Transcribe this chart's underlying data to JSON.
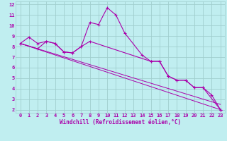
{
  "xlabel": "Windchill (Refroidissement éolien,°C)",
  "bg_color": "#c0eef0",
  "grid_color": "#a0cece",
  "line_color": "#aa00aa",
  "xlim": [
    -0.5,
    23.5
  ],
  "ylim": [
    1.7,
    12.3
  ],
  "yticks": [
    2,
    3,
    4,
    5,
    6,
    7,
    8,
    9,
    10,
    11,
    12
  ],
  "xticks": [
    0,
    1,
    2,
    3,
    4,
    5,
    6,
    7,
    8,
    9,
    10,
    11,
    12,
    13,
    14,
    15,
    16,
    17,
    18,
    19,
    20,
    21,
    22,
    23
  ],
  "line1_x": [
    0,
    1,
    2,
    3,
    4,
    5,
    6,
    7,
    8,
    9,
    10,
    11,
    12,
    14,
    15,
    16,
    17,
    18,
    19,
    20,
    21,
    22,
    23
  ],
  "line1_y": [
    8.3,
    8.9,
    8.3,
    8.5,
    8.3,
    7.5,
    7.4,
    8.0,
    10.3,
    10.1,
    11.7,
    11.0,
    9.3,
    7.2,
    6.6,
    6.6,
    5.2,
    4.8,
    4.8,
    4.1,
    4.1,
    3.4,
    2.0
  ],
  "line2_x": [
    0,
    2,
    3,
    4,
    5,
    6,
    7,
    8,
    15,
    16,
    17,
    18,
    19,
    20,
    21,
    23
  ],
  "line2_y": [
    8.3,
    7.8,
    8.5,
    8.3,
    7.5,
    7.4,
    8.0,
    8.5,
    6.6,
    6.6,
    5.2,
    4.8,
    4.8,
    4.1,
    4.1,
    2.0
  ],
  "trend1_x": [
    0,
    23
  ],
  "trend1_y": [
    8.3,
    2.5
  ],
  "trend2_x": [
    0,
    23
  ],
  "trend2_y": [
    8.3,
    2.0
  ]
}
